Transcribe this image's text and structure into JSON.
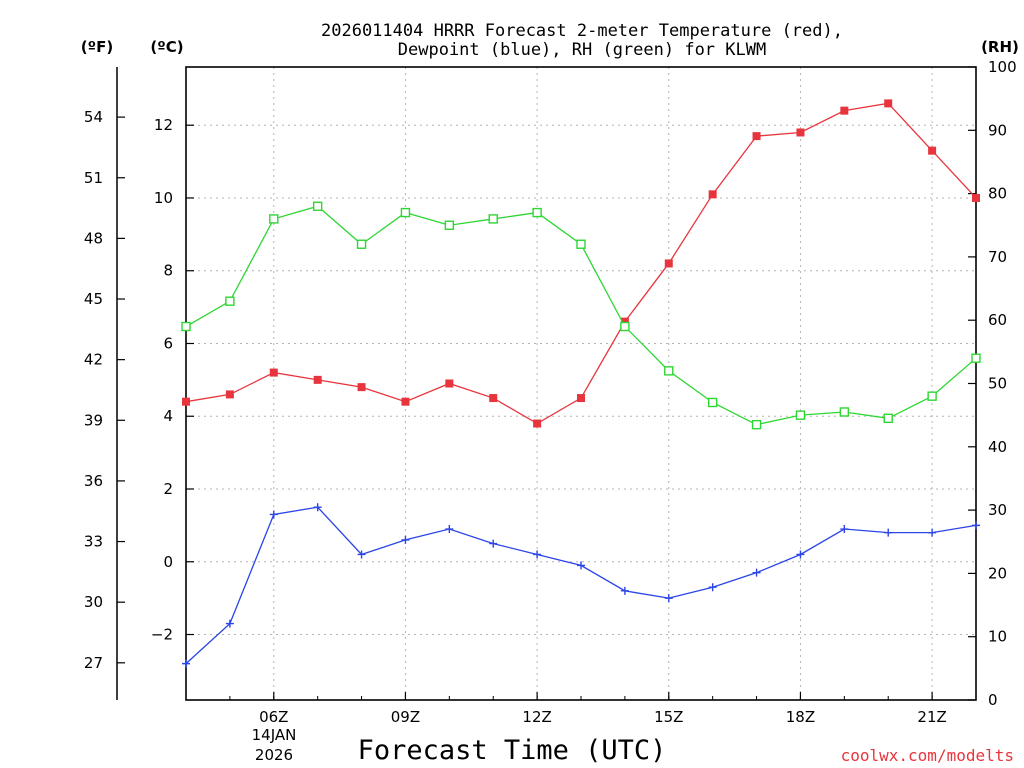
{
  "chart_data": {
    "type": "line",
    "title": [
      "2026011404 HRRR Forecast 2-meter Temperature (red),",
      "Dewpoint (blue), RH (green) for KLWM"
    ],
    "units": {
      "fahrenheit": "(ºF)",
      "celsius": "(ºC)",
      "rh": "(RH)"
    },
    "xlabel": "Forecast Time (UTC)",
    "date_label": [
      "14JAN",
      "2026"
    ],
    "credit": "coolwx.com/modelts",
    "x_hours": [
      4,
      5,
      6,
      7,
      8,
      9,
      10,
      11,
      12,
      13,
      14,
      15,
      16,
      17,
      18,
      19,
      20,
      21,
      22
    ],
    "xlim": [
      4,
      22
    ],
    "x_ticks": [
      {
        "hour": 6,
        "label": "06Z"
      },
      {
        "hour": 9,
        "label": "09Z"
      },
      {
        "hour": 12,
        "label": "12Z"
      },
      {
        "hour": 15,
        "label": "15Z"
      },
      {
        "hour": 18,
        "label": "18Z"
      },
      {
        "hour": 21,
        "label": "21Z"
      }
    ],
    "y_celsius": {
      "lim": [
        -3.8,
        13.6
      ],
      "ticks": [
        -2,
        0,
        2,
        4,
        6,
        8,
        10,
        12
      ],
      "labels": [
        "−2",
        "0",
        "2",
        "4",
        "6",
        "8",
        "10",
        "12"
      ]
    },
    "y_fahrenheit": {
      "lim": [
        25.16,
        56.48
      ],
      "ticks": [
        27,
        30,
        33,
        36,
        39,
        42,
        45,
        48,
        51,
        54
      ],
      "labels": [
        "27",
        "30",
        "33",
        "36",
        "39",
        "42",
        "45",
        "48",
        "51",
        "54"
      ]
    },
    "y_rh": {
      "lim": [
        0,
        100
      ],
      "ticks": [
        0,
        10,
        20,
        30,
        40,
        50,
        60,
        70,
        80,
        90,
        100
      ],
      "labels": [
        "0",
        "10",
        "20",
        "30",
        "40",
        "50",
        "60",
        "70",
        "80",
        "90",
        "100"
      ]
    },
    "series": [
      {
        "name": "2-meter Temperature",
        "axis": "celsius",
        "color": "#e8353d",
        "marker": "filled-square",
        "values": [
          4.4,
          4.6,
          5.2,
          5.0,
          4.8,
          4.4,
          4.9,
          4.5,
          3.8,
          4.5,
          6.6,
          8.2,
          10.1,
          11.7,
          11.8,
          12.4,
          12.6,
          11.3,
          10.0
        ]
      },
      {
        "name": "Dewpoint",
        "axis": "celsius",
        "color": "#2a44e8",
        "marker": "plus",
        "values": [
          -2.8,
          -1.7,
          1.3,
          1.5,
          0.2,
          0.6,
          0.9,
          0.5,
          0.2,
          -0.1,
          -0.8,
          -1.0,
          -0.7,
          -0.3,
          0.2,
          0.9,
          0.8,
          0.8,
          1.0
        ]
      },
      {
        "name": "RH",
        "axis": "rh",
        "color": "#2ed633",
        "marker": "open-square",
        "values": [
          59,
          63,
          76,
          78,
          72,
          77,
          75,
          76,
          77,
          72,
          59,
          52,
          47,
          43.5,
          45,
          45.5,
          44.5,
          48,
          54
        ]
      }
    ]
  }
}
